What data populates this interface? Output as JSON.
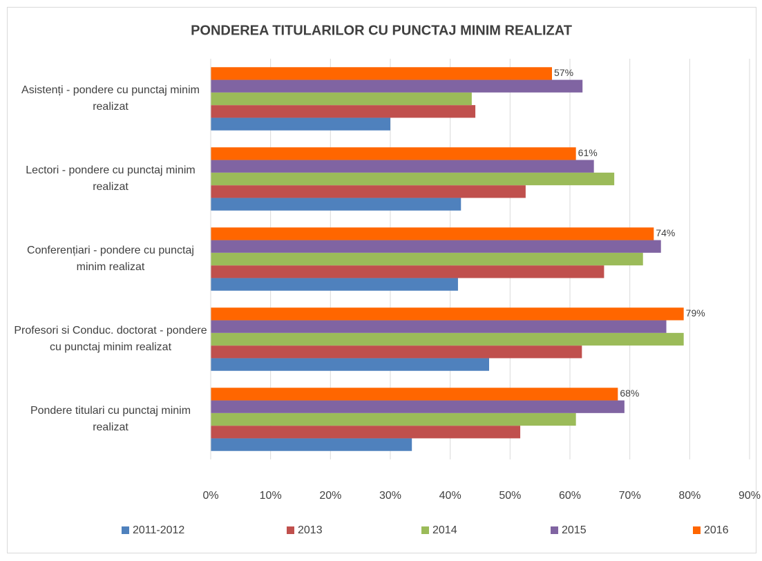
{
  "chart_data": {
    "type": "hbar",
    "title": "PONDEREA TITULARILOR CU PUNCTAJ MINIM REALIZAT",
    "categories": [
      "Asistenți - pondere cu punctaj minim realizat",
      "Lectori - pondere cu punctaj minim realizat",
      "Conferențiari - pondere cu punctaj minim realizat",
      "Profesori si Conduc. doctorat - pondere cu punctaj minim realizat",
      "Pondere titulari cu punctaj minim realizat"
    ],
    "series": [
      {
        "name": "2011-2012",
        "color": "#4f81bd",
        "values": [
          30,
          41.8,
          41.3,
          46.5,
          33.6
        ]
      },
      {
        "name": "2013",
        "color": "#c0504d",
        "values": [
          44.2,
          52.6,
          65.7,
          62,
          51.7
        ]
      },
      {
        "name": "2014",
        "color": "#9bbb59",
        "values": [
          43.6,
          67.4,
          72.2,
          79,
          61
        ]
      },
      {
        "name": "2015",
        "color": "#8064a2",
        "values": [
          62.1,
          64,
          75.2,
          76.1,
          69.1
        ]
      },
      {
        "name": "2016",
        "color": "#ff6600",
        "values": [
          57,
          61,
          74,
          79,
          68
        ],
        "value_labels": [
          "57%",
          "61%",
          "74%",
          "79%",
          "68%"
        ]
      }
    ],
    "xlim": [
      0,
      90
    ],
    "xticks": [
      {
        "value": 0,
        "label": "0%"
      },
      {
        "value": 10,
        "label": "10%"
      },
      {
        "value": 20,
        "label": "20%"
      },
      {
        "value": 30,
        "label": "30%"
      },
      {
        "value": 40,
        "label": "40%"
      },
      {
        "value": 50,
        "label": "50%"
      },
      {
        "value": 60,
        "label": "60%"
      },
      {
        "value": 70,
        "label": "70%"
      },
      {
        "value": 80,
        "label": "80%"
      },
      {
        "value": 90,
        "label": "90%"
      }
    ],
    "grid": true,
    "legend": "bottom"
  }
}
